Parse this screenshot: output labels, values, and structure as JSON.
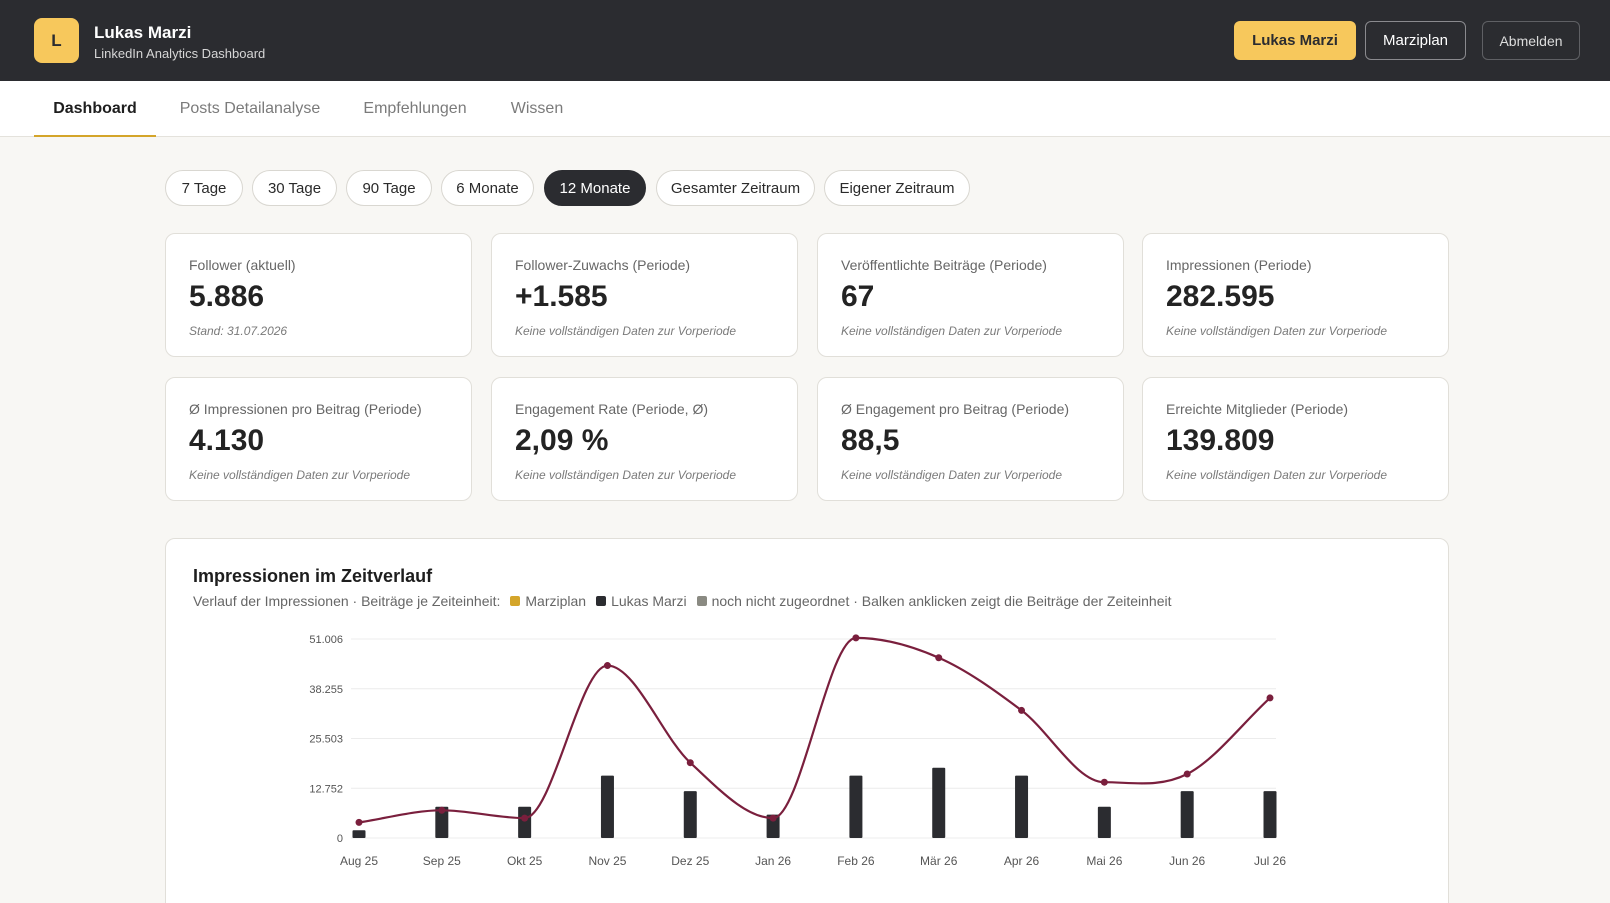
{
  "header": {
    "avatar_letter": "L",
    "user_name": "Lukas Marzi",
    "subtitle": "LinkedIn Analytics Dashboard",
    "buttons": {
      "lukas": "Lukas Marzi",
      "marziplan": "Marziplan",
      "logout": "Abmelden"
    }
  },
  "tabs": [
    "Dashboard",
    "Posts Detailanalyse",
    "Empfehlungen",
    "Wissen"
  ],
  "active_tab": "Dashboard",
  "ranges": [
    "7 Tage",
    "30 Tage",
    "90 Tage",
    "6 Monate",
    "12 Monate",
    "Gesamter Zeitraum",
    "Eigener Zeitraum"
  ],
  "active_range": "12 Monate",
  "kpis": [
    {
      "label": "Follower (aktuell)",
      "value": "5.886",
      "note": "Stand: 31.07.2026"
    },
    {
      "label": "Follower-Zuwachs (Periode)",
      "value": "+1.585",
      "note": "Keine vollständigen Daten zur Vorperiode"
    },
    {
      "label": "Veröffentlichte Beiträge (Periode)",
      "value": "67",
      "note": "Keine vollständigen Daten zur Vorperiode"
    },
    {
      "label": "Impressionen (Periode)",
      "value": "282.595",
      "note": "Keine vollständigen Daten zur Vorperiode"
    },
    {
      "label": "Ø Impressionen pro Beitrag (Periode)",
      "value": "4.130",
      "note": "Keine vollständigen Daten zur Vorperiode"
    },
    {
      "label": "Engagement Rate (Periode, Ø)",
      "value": "2,09 %",
      "note": "Keine vollständigen Daten zur Vorperiode"
    },
    {
      "label": "Ø Engagement pro Beitrag (Periode)",
      "value": "88,5",
      "note": "Keine vollständigen Daten zur Vorperiode"
    },
    {
      "label": "Erreichte Mitglieder (Periode)",
      "value": "139.809",
      "note": "Keine vollständigen Daten zur Vorperiode"
    }
  ],
  "chart": {
    "title": "Impressionen im Zeitverlauf",
    "subtitle_prefix": "Verlauf der Impressionen · Beiträge je Zeiteinheit:",
    "legend": [
      {
        "name": "Marziplan",
        "color": "#d4a52a"
      },
      {
        "name": "Lukas Marzi",
        "color": "#2b2c30"
      },
      {
        "name": "noch nicht zugeordnet · Balken anklicken zeigt die Beiträge der Zeiteinheit",
        "color": "#8a8a82"
      }
    ]
  },
  "chart_data": {
    "type": "line",
    "categories": [
      "Aug 25",
      "Sep 25",
      "Okt 25",
      "Nov 25",
      "Dez 25",
      "Jan 26",
      "Feb 26",
      "Mär 26",
      "Apr 26",
      "Mai 26",
      "Jun 26",
      "Jul 26"
    ],
    "y_ticks": [
      "0",
      "12.752",
      "25.503",
      "38.255",
      "51.006"
    ],
    "ylim": [
      0,
      51006
    ],
    "series": [
      {
        "kind": "line",
        "color": "#7a1f3d",
        "values": [
          4000,
          7100,
          5100,
          44200,
          19300,
          5100,
          51300,
          46200,
          32700,
          14300,
          16400,
          35900
        ]
      },
      {
        "kind": "bar",
        "color": "#2b2c30",
        "values": [
          2000,
          8000,
          8000,
          16000,
          12000,
          6000,
          16000,
          18000,
          16000,
          8000,
          12000,
          12000
        ]
      }
    ],
    "grid": true
  },
  "colors": {
    "accent": "#f7c85c",
    "dark": "#2b2c30",
    "line": "#7a1f3d",
    "tab_underline": "#d4a52a"
  }
}
